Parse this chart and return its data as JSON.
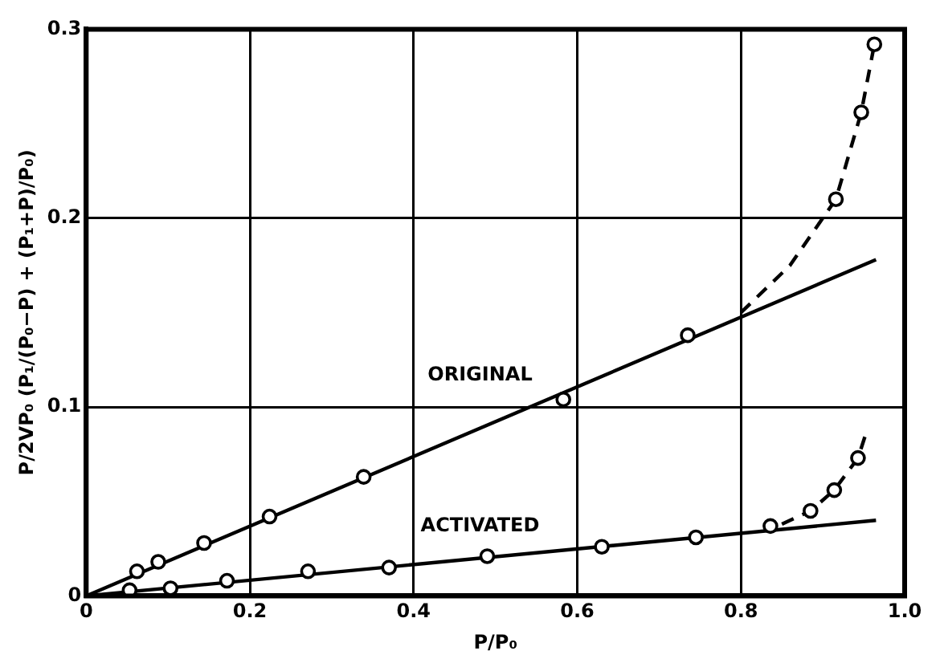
{
  "chart_data": {
    "type": "scatter",
    "xlabel": "P/P₀",
    "ylabel": "P/2VP₀ (P₁/(P₀−P) + (P₁+P)/P₀)",
    "xlim": [
      0,
      1
    ],
    "xticks": [
      0,
      0.2,
      0.4,
      0.6,
      0.8,
      {
        "value": 1,
        "label": "1.0"
      }
    ],
    "ylim": [
      0,
      0.3
    ],
    "yticks": [
      0,
      0.1,
      0.2,
      0.3
    ],
    "grid": true,
    "series": [
      {
        "color": "#000000",
        "marker": "circle",
        "x": [
          0.062,
          0.088,
          0.144,
          0.224,
          0.339,
          0.583,
          0.735,
          0.916,
          0.947,
          0.963
        ],
        "values": [
          0.013,
          0.018,
          0.028,
          0.042,
          0.063,
          0.104,
          0.138,
          0.21,
          0.256,
          0.292
        ]
      },
      {
        "type": "line",
        "name": "ORIGINAL",
        "color": "#000000",
        "marker": "none",
        "line_style": "solid",
        "x": [
          0,
          0.965
        ],
        "values": [
          0,
          0.178
        ]
      },
      {
        "type": "line",
        "color": "#000000",
        "marker": "none",
        "line_style": "dashed",
        "x": [
          0.8,
          0.86,
          0.916,
          0.947,
          0.963
        ],
        "values": [
          0.15,
          0.175,
          0.21,
          0.256,
          0.292
        ]
      },
      {
        "color": "#000000",
        "marker": "circle",
        "x": [
          0.053,
          0.103,
          0.172,
          0.271,
          0.37,
          0.49,
          0.63,
          0.745,
          0.836,
          0.885,
          0.914,
          0.943
        ],
        "values": [
          0.003,
          0.004,
          0.008,
          0.013,
          0.015,
          0.021,
          0.026,
          0.031,
          0.037,
          0.045,
          0.056,
          0.073
        ]
      },
      {
        "type": "line",
        "name": "ACTIVATED",
        "color": "#000000",
        "marker": "none",
        "line_style": "solid",
        "x": [
          0,
          0.965
        ],
        "values": [
          0,
          0.04
        ]
      },
      {
        "type": "line",
        "color": "#000000",
        "marker": "none",
        "line_style": "dashed",
        "x": [
          0.85,
          0.885,
          0.914,
          0.943,
          0.952
        ],
        "values": [
          0.038,
          0.045,
          0.056,
          0.073,
          0.085
        ]
      }
    ]
  }
}
